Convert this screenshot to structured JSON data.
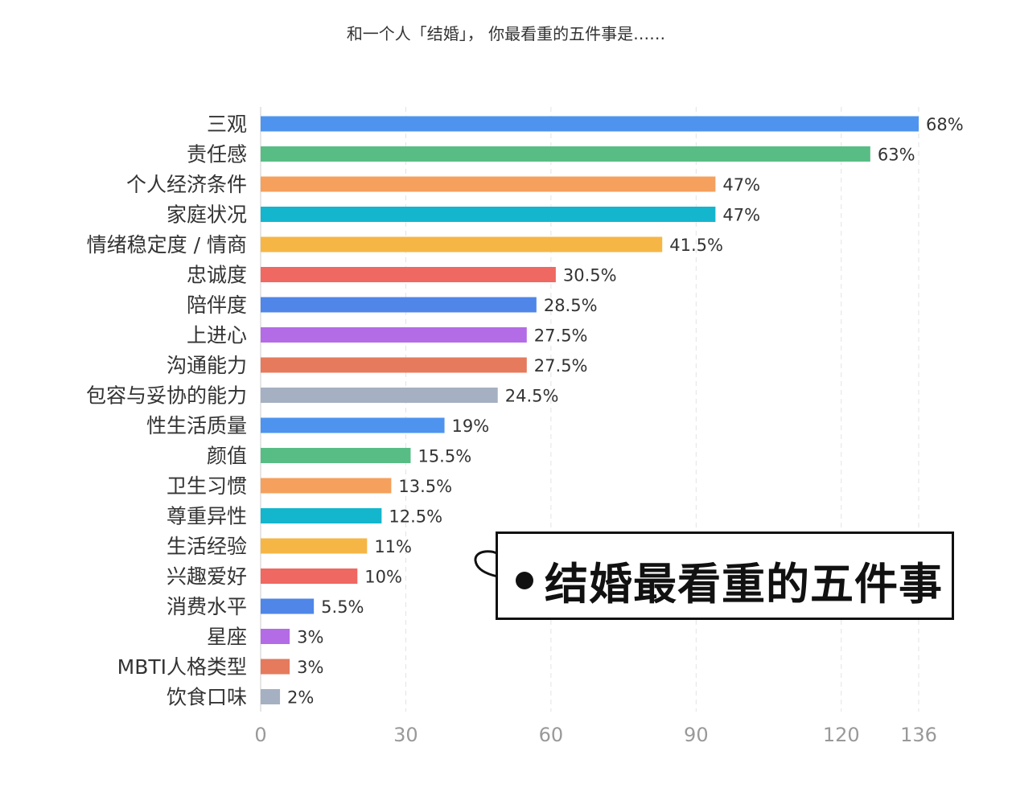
{
  "chart_data": {
    "type": "bar",
    "orientation": "horizontal",
    "title": "和一个人「结婚」， 你最看重的五件事是……",
    "categories": [
      "三观",
      "责任感",
      "个人经济条件",
      "家庭状况",
      "情绪稳定度 / 情商",
      "忠诚度",
      "陪伴度",
      "上进心",
      "沟通能力",
      "包容与妥协的能力",
      "性生活质量",
      "颜值",
      "卫生习惯",
      "尊重异性",
      "生活经验",
      "兴趣爱好",
      "消费水平",
      "星座",
      "MBTI人格类型",
      "饮食口味"
    ],
    "values": [
      136,
      126,
      94,
      94,
      83,
      61,
      57,
      55,
      55,
      49,
      38,
      31,
      27,
      25,
      22,
      20,
      11,
      6,
      6,
      4
    ],
    "value_labels": [
      "68%",
      "63%",
      "47%",
      "47%",
      "41.5%",
      "30.5%",
      "28.5%",
      "27.5%",
      "27.5%",
      "24.5%",
      "19%",
      "15.5%",
      "13.5%",
      "12.5%",
      "11%",
      "10%",
      "5.5%",
      "3%",
      "3%",
      "2%"
    ],
    "colors": [
      "#4e94ee",
      "#58bd85",
      "#f5a05c",
      "#13b6cd",
      "#f6b645",
      "#ef6861",
      "#4f86e8",
      "#b46ce6",
      "#e57a5d",
      "#a5b1c2",
      "#4e94ee",
      "#58bd85",
      "#f5a05c",
      "#13b6cd",
      "#f6b645",
      "#ef6861",
      "#4f86e8",
      "#b46ce6",
      "#e57a5d",
      "#a5b1c2"
    ],
    "x_ticks": [
      0,
      30,
      60,
      90,
      120,
      136
    ],
    "xlim": [
      0,
      136
    ],
    "grid": "vertical-dashed",
    "legend": "none"
  },
  "callout": {
    "text": "结婚最看重的五件事"
  }
}
